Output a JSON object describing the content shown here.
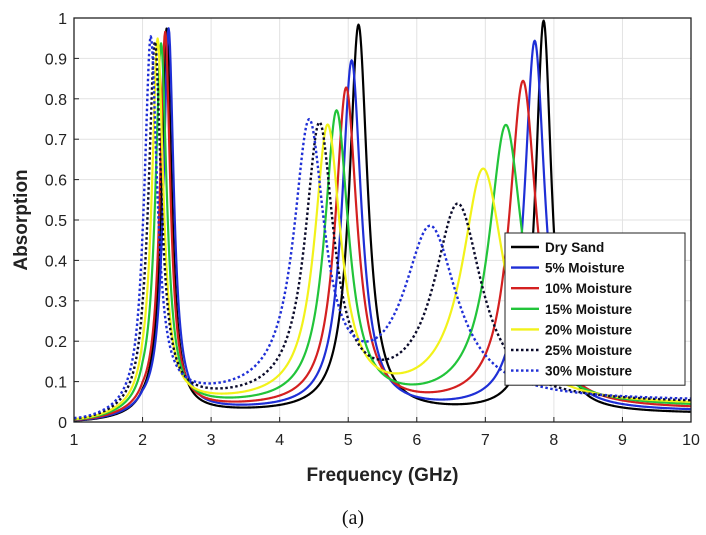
{
  "chart_data": {
    "type": "line",
    "xlabel": "Frequency (GHz)",
    "ylabel": "Absorption",
    "caption": "(a)",
    "xlim": [
      1,
      10
    ],
    "ylim": [
      0,
      1
    ],
    "xticks": [
      "1",
      "2",
      "3",
      "4",
      "5",
      "6",
      "7",
      "8",
      "9",
      "10"
    ],
    "yticks": [
      "0",
      "0.1",
      "0.2",
      "0.3",
      "0.4",
      "0.5",
      "0.6",
      "0.7",
      "0.8",
      "0.9",
      "1"
    ],
    "grid": true,
    "legend_position": "right",
    "series": [
      {
        "name": "Dry Sand",
        "color": "#000000",
        "dash": "solid",
        "baseline": 0.02,
        "peaks": [
          {
            "f": 2.35,
            "a": 0.97,
            "w": 0.09
          },
          {
            "f": 5.15,
            "a": 0.98,
            "w": 0.16
          },
          {
            "f": 7.85,
            "a": 0.99,
            "w": 0.14
          }
        ]
      },
      {
        "name": "5% Moisture",
        "color": "#1f2fd6",
        "dash": "solid",
        "baseline": 0.025,
        "peaks": [
          {
            "f": 2.38,
            "a": 0.97,
            "w": 0.09
          },
          {
            "f": 5.05,
            "a": 0.89,
            "w": 0.17
          },
          {
            "f": 7.72,
            "a": 0.94,
            "w": 0.18
          }
        ]
      },
      {
        "name": "10% Moisture",
        "color": "#d42020",
        "dash": "solid",
        "baseline": 0.03,
        "peaks": [
          {
            "f": 2.33,
            "a": 0.96,
            "w": 0.09
          },
          {
            "f": 4.97,
            "a": 0.82,
            "w": 0.19
          },
          {
            "f": 7.55,
            "a": 0.84,
            "w": 0.24
          }
        ]
      },
      {
        "name": "15% Moisture",
        "color": "#22c43a",
        "dash": "solid",
        "baseline": 0.035,
        "peaks": [
          {
            "f": 2.27,
            "a": 0.93,
            "w": 0.1
          },
          {
            "f": 4.83,
            "a": 0.76,
            "w": 0.21
          },
          {
            "f": 7.3,
            "a": 0.73,
            "w": 0.3
          }
        ]
      },
      {
        "name": "20% Moisture",
        "color": "#f2f21a",
        "dash": "solid",
        "baseline": 0.04,
        "peaks": [
          {
            "f": 2.22,
            "a": 0.94,
            "w": 0.1
          },
          {
            "f": 4.7,
            "a": 0.72,
            "w": 0.23
          },
          {
            "f": 6.97,
            "a": 0.62,
            "w": 0.37
          }
        ]
      },
      {
        "name": "25% Moisture",
        "color": "#0a0a2a",
        "dash": "dotted",
        "baseline": 0.045,
        "peaks": [
          {
            "f": 2.18,
            "a": 0.93,
            "w": 0.11
          },
          {
            "f": 4.58,
            "a": 0.72,
            "w": 0.25
          },
          {
            "f": 6.6,
            "a": 0.53,
            "w": 0.42
          }
        ]
      },
      {
        "name": "30% Moisture",
        "color": "#1f2fd6",
        "dash": "dotted",
        "baseline": 0.05,
        "peaks": [
          {
            "f": 2.12,
            "a": 0.94,
            "w": 0.11
          },
          {
            "f": 4.43,
            "a": 0.72,
            "w": 0.27
          },
          {
            "f": 6.2,
            "a": 0.47,
            "w": 0.47
          }
        ]
      }
    ]
  }
}
